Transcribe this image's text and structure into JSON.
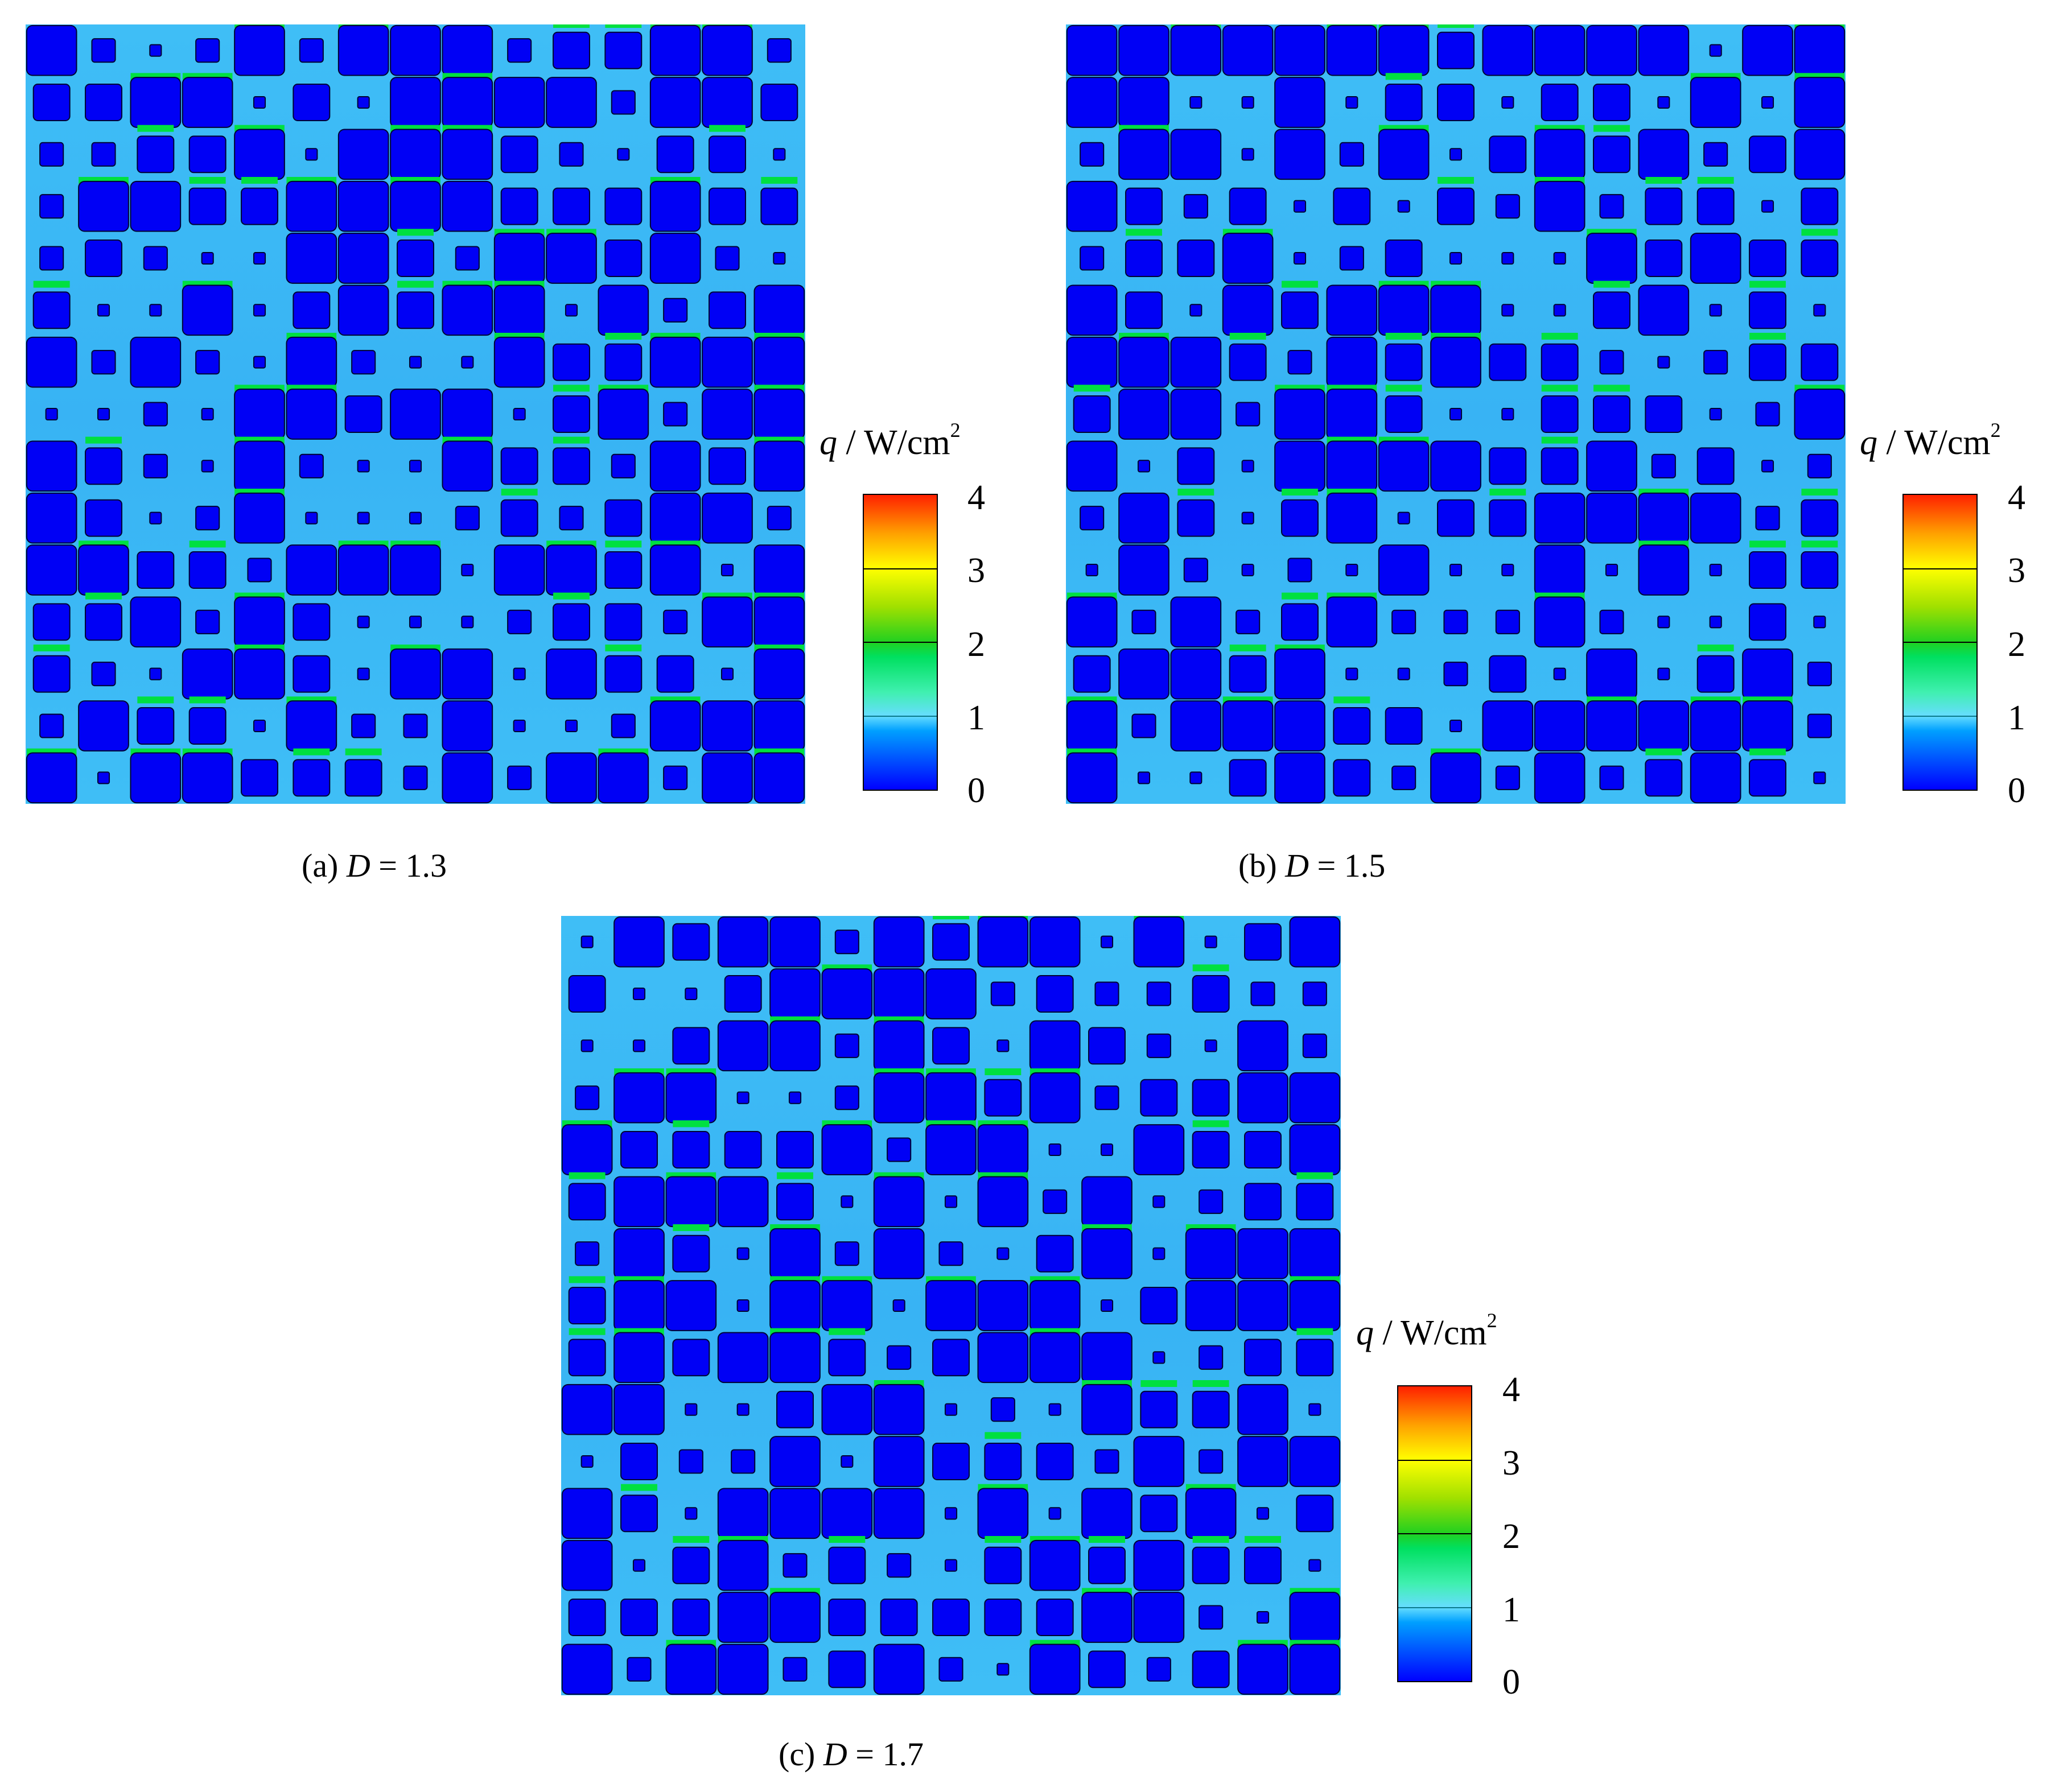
{
  "colorbar": {
    "symbol": "q",
    "unit": "/ W/cm",
    "unit_superscript": "2",
    "tick_labels": [
      "4",
      "3",
      "2",
      "1",
      "0"
    ],
    "min": 0,
    "max": 4,
    "colormap": [
      "#0000ff",
      "#00a0ff",
      "#40f0b0",
      "#00e060",
      "#ffff00",
      "#ff2000"
    ]
  },
  "panels": [
    {
      "caption_prefix": "(a) ",
      "caption_var": "D",
      "caption_suffix": " = 1.3"
    },
    {
      "caption_prefix": "(b) ",
      "caption_var": "D",
      "caption_suffix": " = 1.5"
    },
    {
      "caption_prefix": "(c) ",
      "caption_var": "D",
      "caption_suffix": " = 1.7"
    }
  ],
  "colors": {
    "background_fluid": "#3fbef6",
    "block": "#0000f5",
    "high_flux": "#00e040"
  }
}
